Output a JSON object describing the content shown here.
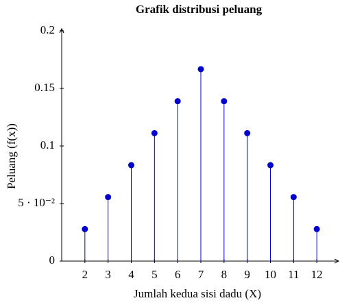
{
  "chart_data": {
    "type": "stem",
    "title": "Grafik distribusi peluang",
    "x_label": "Jumlah kedua sisi dadu (X)",
    "y_label": "Peluang (f(x))",
    "x": [
      2,
      3,
      4,
      5,
      6,
      7,
      8,
      9,
      10,
      11,
      12
    ],
    "values": [
      0.0278,
      0.0556,
      0.0833,
      0.1111,
      0.1389,
      0.1667,
      0.1389,
      0.1111,
      0.0833,
      0.0556,
      0.0278
    ],
    "color": "#0000cc",
    "xlim": [
      1,
      13
    ],
    "ylim": [
      0,
      0.2
    ],
    "xticks": [
      2,
      3,
      4,
      5,
      6,
      7,
      8,
      9,
      10,
      11,
      12
    ],
    "yticks": [
      0,
      {
        "value": 0.05,
        "label": "5 · 10⁻²"
      },
      0.1,
      0.15,
      0.2
    ]
  }
}
